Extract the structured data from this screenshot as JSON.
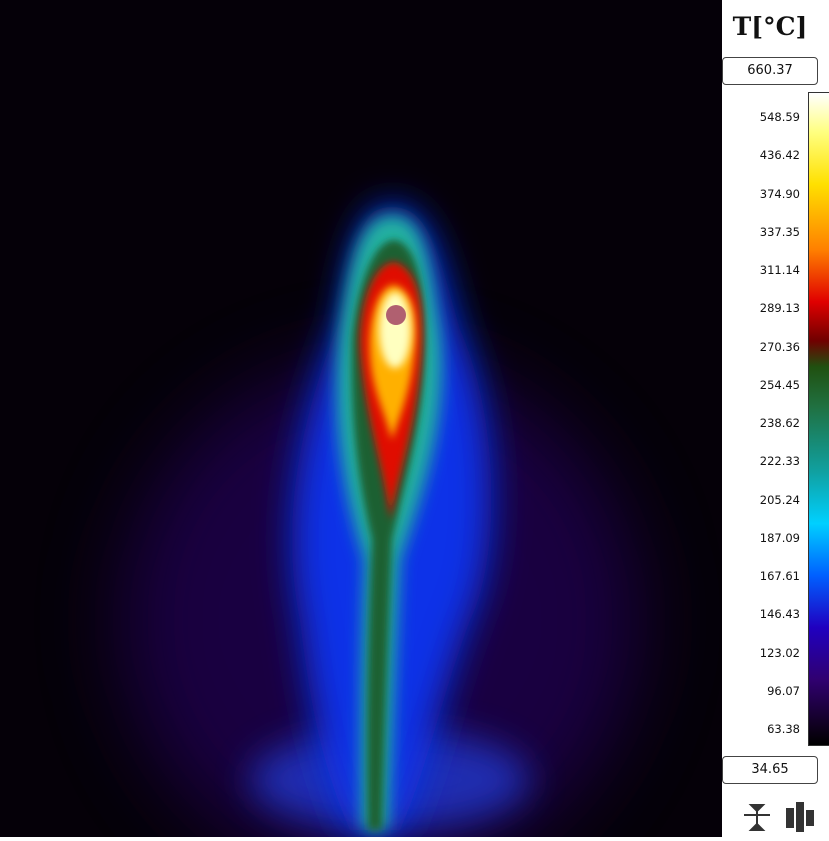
{
  "unit_title": "T[°C]",
  "max": "660.37",
  "min": "34.65",
  "scale_labels": [
    "548.59",
    "436.42",
    "374.90",
    "337.35",
    "311.14",
    "289.13",
    "270.36",
    "254.45",
    "238.62",
    "222.33",
    "205.24",
    "187.09",
    "167.61",
    "146.43",
    "123.02",
    "96.07",
    "63.38"
  ]
}
